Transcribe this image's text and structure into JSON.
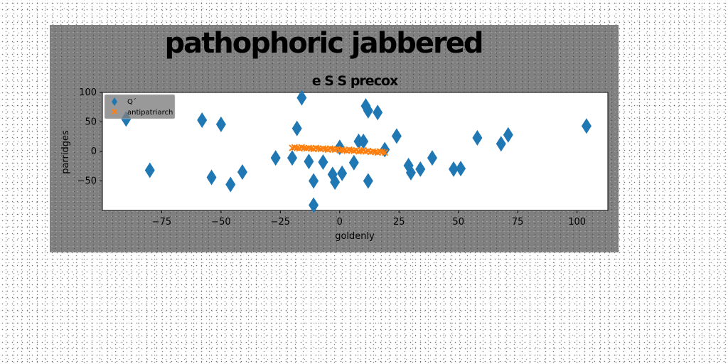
{
  "chart_data": {
    "type": "scatter",
    "suptitle": "pathophoric jabbered",
    "title": "e S S precox",
    "xlabel": "goldenly",
    "ylabel": "parridges",
    "xlim": [
      -100,
      113
    ],
    "ylim": [
      -100,
      100
    ],
    "xticks": [
      -75,
      -50,
      -25,
      0,
      25,
      50,
      75,
      100
    ],
    "yticks": [
      -50,
      0,
      50,
      100
    ],
    "grid": false,
    "legend_position": "top-left",
    "colors": {
      "series1": "#1f77b4",
      "series2": "#ff7f0e",
      "plot_bg": "#ffffff",
      "figure_bg": "#808080"
    },
    "series": [
      {
        "name": "Q´",
        "marker": "diamond",
        "x": [
          -90,
          -80,
          -58,
          -54,
          -50,
          -46,
          -41,
          -27,
          -20,
          -18,
          -16,
          -13,
          -11,
          -11,
          -7,
          -3,
          -2,
          0,
          1,
          6,
          8,
          10,
          11,
          12,
          12,
          16,
          19,
          24,
          29,
          30,
          34,
          39,
          48,
          51,
          58,
          68,
          71,
          104
        ],
        "y": [
          55,
          -32,
          53,
          -44,
          46,
          -56,
          -35,
          -11,
          -11,
          39,
          91,
          -17,
          -50,
          -91,
          -18,
          -39,
          -52,
          7,
          -37,
          -19,
          17,
          17,
          77,
          69,
          -50,
          66,
          3,
          26,
          -24,
          -36,
          -30,
          -11,
          -30,
          -29,
          23,
          13,
          28,
          43
        ]
      },
      {
        "name": "antipatriarch",
        "marker": "x",
        "x": [
          -20,
          -19,
          -18,
          -17,
          -16,
          -15,
          -14,
          -13,
          -12,
          -11,
          -10,
          -9,
          -8,
          -7,
          -6,
          -5,
          -4,
          -3,
          -2,
          -1,
          0,
          1,
          2,
          3,
          4,
          5,
          6,
          7,
          8,
          9,
          10,
          11,
          12,
          13,
          14,
          15,
          16,
          17,
          18,
          19
        ],
        "y": [
          6,
          7,
          6,
          5,
          7,
          6,
          5,
          6,
          5,
          4,
          6,
          5,
          4,
          5,
          4,
          3,
          5,
          4,
          3,
          4,
          2,
          3,
          2,
          1,
          3,
          2,
          1,
          2,
          0,
          1,
          2,
          0,
          1,
          -1,
          0,
          -1,
          -2,
          0,
          -1,
          -2
        ]
      }
    ]
  }
}
